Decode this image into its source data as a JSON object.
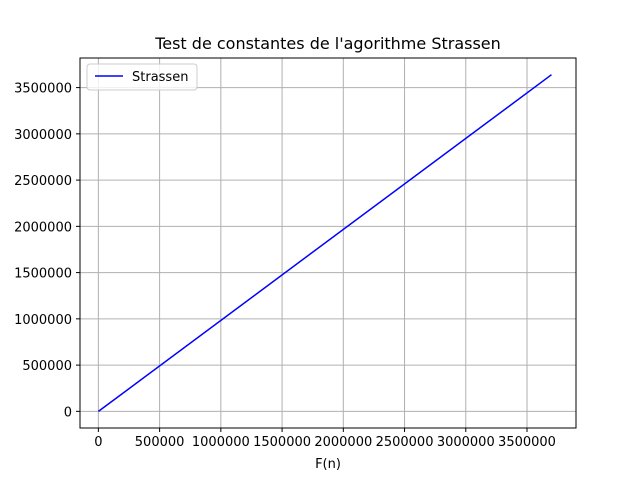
{
  "chart_data": {
    "type": "line",
    "title": "Test de constantes de l'agorithme Strassen",
    "xlabel": "F(n)",
    "ylabel": "",
    "xlim": [
      -150000,
      3900000
    ],
    "ylim": [
      -180000,
      3820000
    ],
    "x_ticks": [
      0,
      500000,
      1000000,
      1500000,
      2000000,
      2500000,
      3000000,
      3500000
    ],
    "x_tick_labels": [
      "0",
      "500000",
      "1000000",
      "1500000",
      "2000000",
      "2500000",
      "3000000",
      "3500000"
    ],
    "y_ticks": [
      0,
      500000,
      1000000,
      1500000,
      2000000,
      2500000,
      3000000,
      3500000
    ],
    "y_tick_labels": [
      "0",
      "500000",
      "1000000",
      "1500000",
      "2000000",
      "2500000",
      "3000000",
      "3500000"
    ],
    "grid": true,
    "legend_position": "top-left",
    "series": [
      {
        "name": "Strassen",
        "color": "#0000ff",
        "x": [
          0,
          3700000
        ],
        "y": [
          0,
          3640000
        ]
      }
    ]
  }
}
